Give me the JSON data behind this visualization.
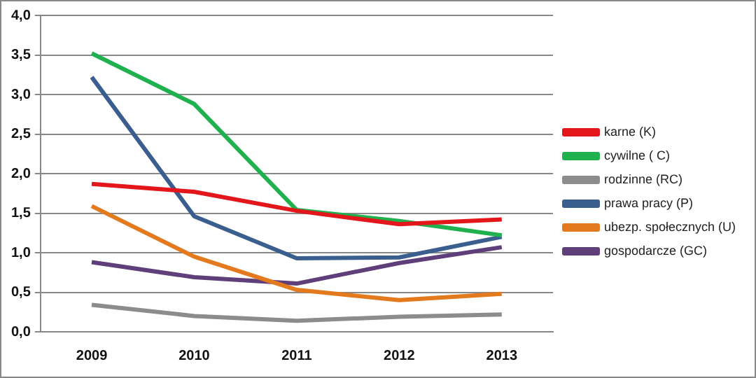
{
  "chart_data": {
    "type": "line",
    "categories": [
      "2009",
      "2010",
      "2011",
      "2012",
      "2013"
    ],
    "series": [
      {
        "name": "karne (K)",
        "color": "#e3171b",
        "values": [
          1.87,
          1.77,
          1.53,
          1.36,
          1.42
        ]
      },
      {
        "name": "cywilne ( C)",
        "color": "#1fb14d",
        "values": [
          3.52,
          2.88,
          1.54,
          1.4,
          1.22
        ]
      },
      {
        "name": "rodzinne (RC)",
        "color": "#8c8c8c",
        "values": [
          0.34,
          0.2,
          0.14,
          0.19,
          0.22
        ]
      },
      {
        "name": "prawa pracy (P)",
        "color": "#3a5f8f",
        "values": [
          3.22,
          1.46,
          0.93,
          0.94,
          1.2
        ]
      },
      {
        "name": "ubezp. społecznych (U)",
        "color": "#e47a1e",
        "values": [
          1.59,
          0.95,
          0.53,
          0.4,
          0.48
        ]
      },
      {
        "name": "gospodarcze (GC)",
        "color": "#5f3f7a",
        "values": [
          0.88,
          0.69,
          0.61,
          0.87,
          1.07
        ]
      }
    ],
    "ylim": [
      0,
      4
    ],
    "yticks": [
      {
        "value": 0,
        "label": "0,0"
      },
      {
        "value": 0.5,
        "label": "0,5"
      },
      {
        "value": 1,
        "label": "1,0"
      },
      {
        "value": 1.5,
        "label": "1,5"
      },
      {
        "value": 2,
        "label": "2,0"
      },
      {
        "value": 2.5,
        "label": "2,5"
      },
      {
        "value": 3,
        "label": "3,0"
      },
      {
        "value": 3.5,
        "label": "3,5"
      },
      {
        "value": 4,
        "label": "4,0"
      }
    ],
    "grid": "y",
    "legend": "right",
    "marker": "none",
    "line_style": "solid"
  }
}
